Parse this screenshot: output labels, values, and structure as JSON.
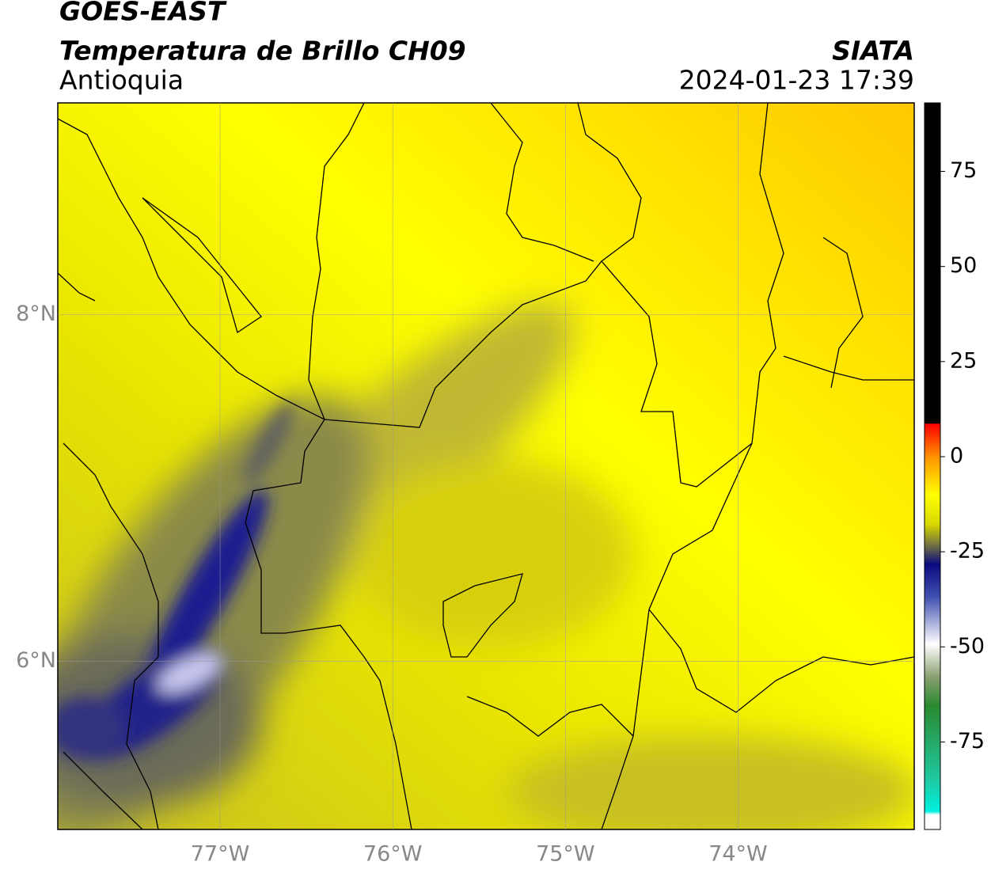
{
  "header": {
    "title": "GOES-EAST",
    "subtitle": "Temperatura de Brillo CH09",
    "region": "Antioquia",
    "source": "SIATA",
    "timestamp": "2024-01-23 17:39"
  },
  "map": {
    "xlim": [
      -77.94,
      -72.98
    ],
    "ylim": [
      5.03,
      9.22
    ],
    "xticks": [
      {
        "value": -77,
        "label": "77°W"
      },
      {
        "value": -76,
        "label": "76°W"
      },
      {
        "value": -75,
        "label": "75°W"
      },
      {
        "value": -74,
        "label": "74°W"
      }
    ],
    "yticks": [
      {
        "value": 8,
        "label": "8°N"
      },
      {
        "value": 6,
        "label": "6°N"
      }
    ],
    "grid": true
  },
  "colorbar": {
    "lim": [
      -98,
      93
    ],
    "ticks": [
      75,
      50,
      25,
      0,
      -25,
      -50,
      -75
    ]
  }
}
